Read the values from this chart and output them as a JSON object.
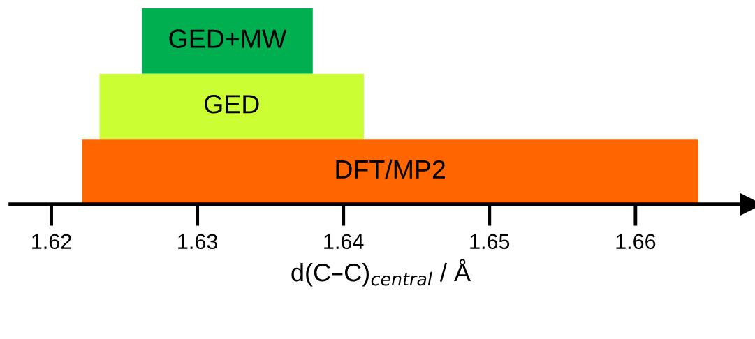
{
  "chart_data": {
    "type": "bar",
    "orientation": "horizontal",
    "categories": [
      "GED+MW",
      "GED",
      "DFT/MP2"
    ],
    "base": [
      1.6262,
      1.6233,
      1.6221
    ],
    "values": [
      0.0117,
      0.0181,
      0.0422
    ],
    "colors": [
      "#00b050",
      "#ccff33",
      "#ff6600"
    ],
    "xlim": [
      1.6172,
      1.6679
    ],
    "xticks": [
      1.62,
      1.63,
      1.64,
      1.65,
      1.66
    ],
    "xlabel": "d(C–C)$_{central}$ / Å",
    "tick_labels": "x",
    "grid": false,
    "legend": false
  }
}
